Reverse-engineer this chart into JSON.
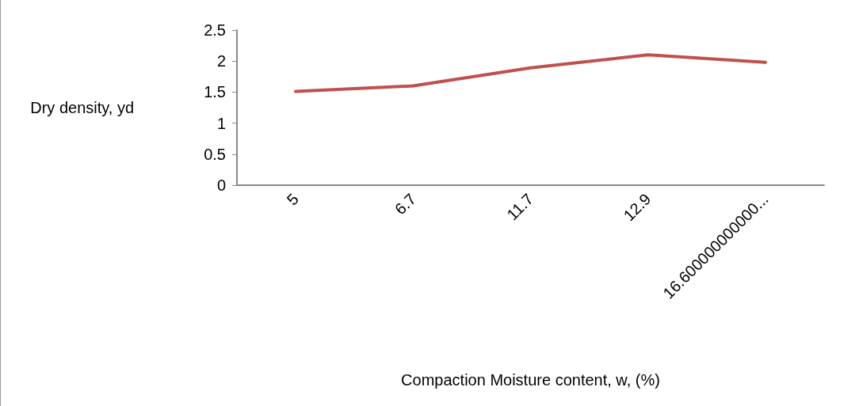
{
  "chart_data": {
    "type": "line",
    "xlabel": "Compaction Moisture content, w, (%)",
    "ylabel": "Dry density, yd",
    "categories": [
      "5",
      "6.7",
      "11.7",
      "12.9",
      "16.600000000000..."
    ],
    "series": [
      {
        "color": "#c0504d",
        "values": [
          1.51,
          1.6,
          1.89,
          2.1,
          1.98
        ]
      }
    ],
    "ylim": [
      0,
      2.5
    ],
    "yticks": [
      0,
      0.5,
      1,
      1.5,
      2,
      2.5
    ],
    "grid": false,
    "marker": "none",
    "line_style": "solid"
  }
}
